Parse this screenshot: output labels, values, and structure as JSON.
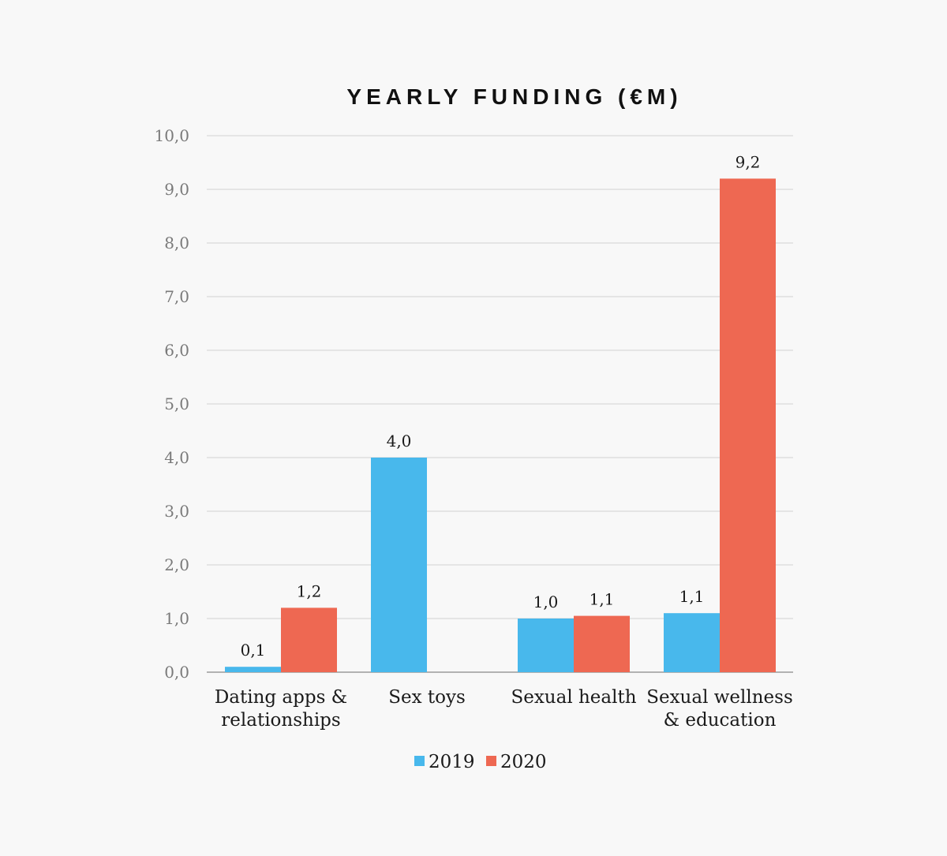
{
  "chart_data": {
    "type": "bar",
    "title": "YEARLY FUNDING (€M)",
    "xlabel": "",
    "ylabel": "",
    "ylim": [
      0,
      10
    ],
    "yticks": [
      "0,0",
      "1,0",
      "2,0",
      "3,0",
      "4,0",
      "5,0",
      "6,0",
      "7,0",
      "8,0",
      "9,0",
      "10,0"
    ],
    "grid": true,
    "legend_position": "bottom",
    "categories": [
      [
        "Dating apps &",
        "relationships"
      ],
      [
        "Sex toys"
      ],
      [
        "Sexual health"
      ],
      [
        "Sexual wellness",
        "& education"
      ]
    ],
    "series": [
      {
        "name": "2019",
        "color": "#48b8ec",
        "values": [
          0.1,
          4.0,
          1.0,
          1.1
        ],
        "labels": [
          "0,1",
          "4,0",
          "1,0",
          "1,1"
        ]
      },
      {
        "name": "2020",
        "color": "#ee6852",
        "values": [
          1.2,
          null,
          1.05,
          9.2
        ],
        "labels": [
          "1,2",
          "",
          "1,1",
          "9,2"
        ]
      }
    ]
  }
}
